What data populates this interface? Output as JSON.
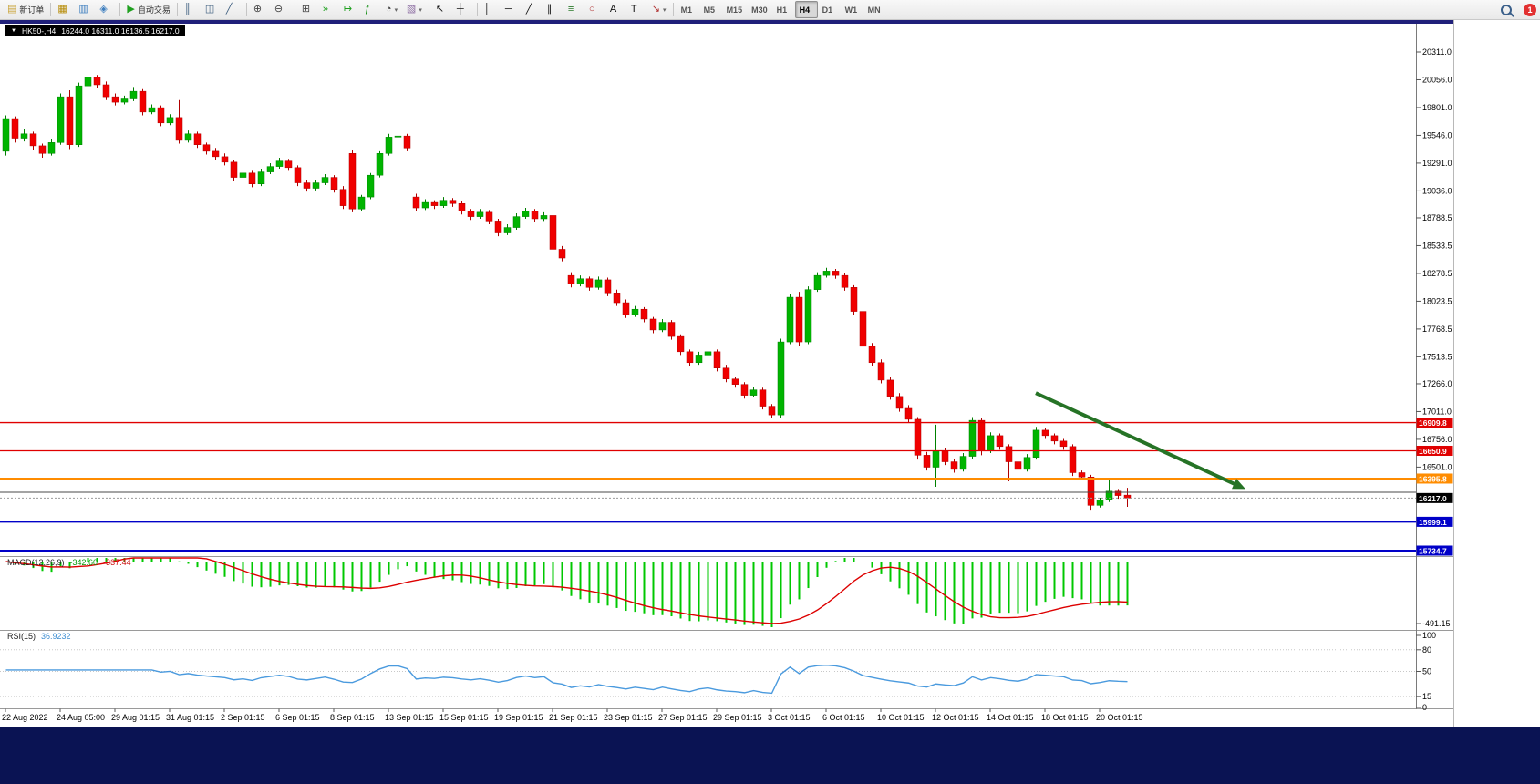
{
  "toolbar": {
    "notification_count": "1",
    "items": [
      {
        "type": "button",
        "name": "new-order-button",
        "glyph": "doc-plus",
        "label": "新订单"
      },
      {
        "type": "sep"
      },
      {
        "type": "button",
        "name": "charts-button",
        "glyph": "profiles"
      },
      {
        "type": "button",
        "name": "data-window-button",
        "glyph": "data-window"
      },
      {
        "type": "button",
        "name": "navigator-button",
        "glyph": "navigator"
      },
      {
        "type": "sep"
      },
      {
        "type": "button",
        "name": "autotrade-button",
        "glyph": "play",
        "label": "自动交易"
      },
      {
        "type": "sep"
      },
      {
        "type": "button",
        "name": "bar-chart-button",
        "glyph": "bars"
      },
      {
        "type": "button",
        "name": "candle-chart-button",
        "glyph": "candles"
      },
      {
        "type": "button",
        "name": "line-chart-button",
        "glyph": "linechart"
      },
      {
        "type": "sep"
      },
      {
        "type": "button",
        "name": "zoom-in-button",
        "glyph": "zoom-in"
      },
      {
        "type": "button",
        "name": "zoom-out-button",
        "glyph": "zoom-out"
      },
      {
        "type": "sep"
      },
      {
        "type": "button",
        "name": "tile-windows-button",
        "glyph": "grid"
      },
      {
        "type": "button",
        "name": "auto-scroll-button",
        "glyph": "autoscroll"
      },
      {
        "type": "button",
        "name": "chart-shift-button",
        "glyph": "shift"
      },
      {
        "type": "button",
        "name": "indicators-button",
        "glyph": "fx"
      },
      {
        "type": "button",
        "name": "periods-button",
        "glyph": "clock",
        "caret": true
      },
      {
        "type": "button",
        "name": "templates-button",
        "glyph": "template",
        "caret": true
      },
      {
        "type": "sep"
      },
      {
        "type": "button",
        "name": "cursor-button",
        "glyph": "cursor"
      },
      {
        "type": "button",
        "name": "crosshair-button",
        "glyph": "crosshair"
      },
      {
        "type": "sep"
      },
      {
        "type": "button",
        "name": "vertical-line-button",
        "glyph": "vline"
      },
      {
        "type": "button",
        "name": "horizontal-line-button",
        "glyph": "hline"
      },
      {
        "type": "button",
        "name": "trendline-button",
        "glyph": "tline"
      },
      {
        "type": "button",
        "name": "channel-button",
        "glyph": "channel"
      },
      {
        "type": "button",
        "name": "fibonacci-button",
        "glyph": "fibo"
      },
      {
        "type": "button",
        "name": "shapes-button",
        "glyph": "shapes"
      },
      {
        "type": "button",
        "name": "text-button",
        "glyph": "textA"
      },
      {
        "type": "button",
        "name": "label-button",
        "glyph": "textT"
      },
      {
        "type": "button",
        "name": "arrows-button",
        "glyph": "arrows",
        "caret": true
      },
      {
        "type": "sep"
      },
      {
        "type": "tf",
        "name": "timeframe-m1",
        "label": "M1"
      },
      {
        "type": "tf",
        "name": "timeframe-m5",
        "label": "M5"
      },
      {
        "type": "tf",
        "name": "timeframe-m15",
        "label": "M15"
      },
      {
        "type": "tf",
        "name": "timeframe-m30",
        "label": "M30"
      },
      {
        "type": "tf",
        "name": "timeframe-h1",
        "label": "H1"
      },
      {
        "type": "tf",
        "name": "timeframe-h4",
        "label": "H4",
        "active": true
      },
      {
        "type": "tf",
        "name": "timeframe-d1",
        "label": "D1"
      },
      {
        "type": "tf",
        "name": "timeframe-w1",
        "label": "W1"
      },
      {
        "type": "tf",
        "name": "timeframe-mn",
        "label": "MN"
      },
      {
        "type": "spacer"
      },
      {
        "type": "button",
        "name": "search-button",
        "glyph": "magnifier"
      },
      {
        "type": "badge",
        "name": "notification-badge",
        "label": "1"
      }
    ]
  },
  "chart_title": {
    "symbol": "HK50-,H4",
    "ohlc": "16244.0 16311.0 16136.5 16217.0"
  },
  "panels": {
    "macd_label": "MACD(12,26,9)",
    "macd_value": "-342.60",
    "macd_signal": "-337.44",
    "rsi_label": "RSI(15)",
    "rsi_value": "36.9232"
  },
  "chart_data": {
    "type": "candlestick",
    "symbol": "HK50-",
    "timeframe": "H4",
    "current": {
      "open": 16244.0,
      "high": 16311.0,
      "low": 16136.5,
      "close": 16217.0
    },
    "up_color": "#00b400",
    "down_color": "#f00000",
    "up_wick": "#008000",
    "down_wick": "#b00000",
    "price_axis_ticks": [
      20311.0,
      20056.0,
      19801.0,
      19546.0,
      19291.0,
      19036.0,
      18788.5,
      18533.5,
      18278.5,
      18023.5,
      17768.5,
      17513.5,
      17266.0,
      17011.0,
      16756.0,
      16501.0
    ],
    "price_tags": [
      {
        "price": 16909.8,
        "label": "16909.8",
        "color": "#e00000"
      },
      {
        "price": 16650.9,
        "label": "16650.9",
        "color": "#e00000"
      },
      {
        "price": 16395.8,
        "label": "16395.8",
        "color": "#ff8c00"
      },
      {
        "price": 16217.0,
        "label": "16217.0",
        "color": "#000000"
      },
      {
        "price": 15999.1,
        "label": "15999.1",
        "color": "#0000c8"
      },
      {
        "price": 15734.7,
        "label": "15734.7",
        "color": "#0000c8"
      }
    ],
    "hlines": [
      {
        "price": 16909.8,
        "color": "#e00000",
        "width": 1.3,
        "style": "solid"
      },
      {
        "price": 16650.9,
        "color": "#e00000",
        "width": 1.3,
        "style": "solid"
      },
      {
        "price": 16395.8,
        "color": "#ff8c00",
        "width": 2,
        "style": "solid"
      },
      {
        "price": 16270.0,
        "color": "#4a4a4a",
        "width": 1,
        "style": "solid"
      },
      {
        "price": 16217.0,
        "color": "#999999",
        "width": 1,
        "style": "dotted"
      },
      {
        "price": 15999.1,
        "color": "#0000c8",
        "width": 2,
        "style": "solid"
      },
      {
        "price": 15734.7,
        "color": "#0000c8",
        "width": 2,
        "style": "solid"
      }
    ],
    "trend_arrow": {
      "from_index": 113,
      "from_price": 17180,
      "to_index": 136,
      "to_price": 16300,
      "color": "#267326"
    },
    "macd": {
      "fast": 12,
      "slow": 26,
      "signal_period": 9,
      "axis_label": "-491.15",
      "bar_color": "#00c800",
      "signal_color": "#dd0000"
    },
    "rsi": {
      "period": 15,
      "levels": [
        80,
        50,
        15
      ],
      "axis_labels": [
        "100",
        "80",
        "50",
        "15",
        "0"
      ],
      "line_color": "#4a9ade"
    },
    "time_axis": [
      {
        "i": 0,
        "label": "22 Aug 2022"
      },
      {
        "i": 6,
        "label": "24 Aug 05:00"
      },
      {
        "i": 12,
        "label": "29 Aug 01:15"
      },
      {
        "i": 18,
        "label": "31 Aug 01:15"
      },
      {
        "i": 24,
        "label": "2 Sep 01:15"
      },
      {
        "i": 30,
        "label": "6 Sep 01:15"
      },
      {
        "i": 36,
        "label": "8 Sep 01:15"
      },
      {
        "i": 42,
        "label": "13 Sep 01:15"
      },
      {
        "i": 48,
        "label": "15 Sep 01:15"
      },
      {
        "i": 54,
        "label": "19 Sep 01:15"
      },
      {
        "i": 60,
        "label": "21 Sep 01:15"
      },
      {
        "i": 66,
        "label": "23 Sep 01:15"
      },
      {
        "i": 72,
        "label": "27 Sep 01:15"
      },
      {
        "i": 78,
        "label": "29 Sep 01:15"
      },
      {
        "i": 84,
        "label": "3 Oct 01:15"
      },
      {
        "i": 90,
        "label": "6 Oct 01:15"
      },
      {
        "i": 96,
        "label": "10 Oct 01:15"
      },
      {
        "i": 102,
        "label": "12 Oct 01:15"
      },
      {
        "i": 108,
        "label": "14 Oct 01:15"
      },
      {
        "i": 114,
        "label": "18 Oct 01:15"
      },
      {
        "i": 120,
        "label": "20 Oct 01:15"
      }
    ],
    "candles": [
      [
        19400,
        19730,
        19360,
        19700
      ],
      [
        19700,
        19720,
        19480,
        19520
      ],
      [
        19520,
        19600,
        19490,
        19560
      ],
      [
        19560,
        19580,
        19410,
        19450
      ],
      [
        19450,
        19470,
        19340,
        19380
      ],
      [
        19380,
        19510,
        19360,
        19480
      ],
      [
        19480,
        19930,
        19460,
        19900
      ],
      [
        19900,
        19960,
        19420,
        19460
      ],
      [
        19460,
        20030,
        19440,
        20000
      ],
      [
        20000,
        20120,
        19970,
        20080
      ],
      [
        20080,
        20100,
        19980,
        20010
      ],
      [
        20010,
        20040,
        19870,
        19900
      ],
      [
        19900,
        19930,
        19820,
        19850
      ],
      [
        19850,
        19910,
        19830,
        19880
      ],
      [
        19880,
        19990,
        19860,
        19950
      ],
      [
        19950,
        19970,
        19730,
        19760
      ],
      [
        19760,
        19830,
        19740,
        19800
      ],
      [
        19800,
        19820,
        19630,
        19660
      ],
      [
        19660,
        19740,
        19640,
        19710
      ],
      [
        19710,
        19870,
        19470,
        19500
      ],
      [
        19500,
        19590,
        19480,
        19560
      ],
      [
        19560,
        19580,
        19430,
        19460
      ],
      [
        19460,
        19480,
        19370,
        19400
      ],
      [
        19400,
        19430,
        19320,
        19350
      ],
      [
        19350,
        19380,
        19270,
        19300
      ],
      [
        19300,
        19320,
        19130,
        19160
      ],
      [
        19160,
        19230,
        19140,
        19200
      ],
      [
        19200,
        19220,
        19070,
        19100
      ],
      [
        19100,
        19240,
        19080,
        19210
      ],
      [
        19210,
        19290,
        19190,
        19260
      ],
      [
        19260,
        19340,
        19240,
        19310
      ],
      [
        19310,
        19330,
        19220,
        19250
      ],
      [
        19250,
        19270,
        19080,
        19110
      ],
      [
        19110,
        19140,
        19030,
        19060
      ],
      [
        19060,
        19140,
        19040,
        19110
      ],
      [
        19110,
        19190,
        19090,
        19160
      ],
      [
        19160,
        19180,
        19020,
        19050
      ],
      [
        19050,
        19080,
        18870,
        18900
      ],
      [
        19380,
        19410,
        18840,
        18870
      ],
      [
        18870,
        19000,
        18850,
        18980
      ],
      [
        18980,
        19200,
        18960,
        19180
      ],
      [
        19180,
        19400,
        19160,
        19380
      ],
      [
        19380,
        19560,
        19360,
        19530
      ],
      [
        19530,
        19580,
        19490,
        19540
      ],
      [
        19540,
        19560,
        19400,
        19430
      ],
      [
        18980,
        19010,
        18850,
        18880
      ],
      [
        18880,
        18960,
        18860,
        18930
      ],
      [
        18930,
        18950,
        18870,
        18900
      ],
      [
        18900,
        18980,
        18880,
        18950
      ],
      [
        18950,
        18970,
        18890,
        18920
      ],
      [
        18920,
        18940,
        18820,
        18850
      ],
      [
        18850,
        18870,
        18770,
        18800
      ],
      [
        18800,
        18870,
        18780,
        18840
      ],
      [
        18840,
        18860,
        18730,
        18760
      ],
      [
        18760,
        18780,
        18620,
        18650
      ],
      [
        18650,
        18730,
        18630,
        18700
      ],
      [
        18700,
        18830,
        18680,
        18800
      ],
      [
        18800,
        18880,
        18780,
        18850
      ],
      [
        18850,
        18870,
        18750,
        18780
      ],
      [
        18780,
        18840,
        18760,
        18810
      ],
      [
        18810,
        18830,
        18470,
        18500
      ],
      [
        18500,
        18530,
        18390,
        18420
      ],
      [
        18260,
        18290,
        18150,
        18180
      ],
      [
        18180,
        18260,
        18160,
        18230
      ],
      [
        18230,
        18250,
        18120,
        18150
      ],
      [
        18150,
        18250,
        18130,
        18220
      ],
      [
        18220,
        18240,
        18070,
        18100
      ],
      [
        18100,
        18130,
        17980,
        18010
      ],
      [
        18010,
        18040,
        17870,
        17900
      ],
      [
        17900,
        17980,
        17880,
        17950
      ],
      [
        17950,
        17970,
        17830,
        17860
      ],
      [
        17860,
        17880,
        17730,
        17760
      ],
      [
        17760,
        17860,
        17740,
        17830
      ],
      [
        17830,
        17850,
        17670,
        17700
      ],
      [
        17700,
        17720,
        17530,
        17560
      ],
      [
        17560,
        17580,
        17430,
        17460
      ],
      [
        17460,
        17560,
        17440,
        17530
      ],
      [
        17530,
        17600,
        17510,
        17560
      ],
      [
        17560,
        17580,
        17380,
        17410
      ],
      [
        17410,
        17440,
        17280,
        17310
      ],
      [
        17310,
        17330,
        17230,
        17260
      ],
      [
        17260,
        17280,
        17130,
        17160
      ],
      [
        17160,
        17240,
        17140,
        17210
      ],
      [
        17210,
        17230,
        17030,
        17060
      ],
      [
        17060,
        17080,
        16950,
        16980
      ],
      [
        16980,
        17680,
        16950,
        17650
      ],
      [
        17650,
        18090,
        17630,
        18060
      ],
      [
        18060,
        18110,
        17610,
        17650
      ],
      [
        17650,
        18160,
        17630,
        18130
      ],
      [
        18130,
        18290,
        18110,
        18260
      ],
      [
        18260,
        18330,
        18240,
        18300
      ],
      [
        18300,
        18320,
        18230,
        18260
      ],
      [
        18260,
        18280,
        18120,
        18150
      ],
      [
        18150,
        18170,
        17900,
        17930
      ],
      [
        17930,
        17950,
        17580,
        17610
      ],
      [
        17610,
        17640,
        17430,
        17460
      ],
      [
        17460,
        17490,
        17270,
        17300
      ],
      [
        17300,
        17330,
        17120,
        17150
      ],
      [
        17150,
        17180,
        17010,
        17040
      ],
      [
        17040,
        17070,
        16910,
        16940
      ],
      [
        16940,
        16960,
        16570,
        16610
      ],
      [
        16610,
        16640,
        16470,
        16500
      ],
      [
        16500,
        16890,
        16320,
        16650
      ],
      [
        16650,
        16680,
        16520,
        16550
      ],
      [
        16550,
        16580,
        16450,
        16480
      ],
      [
        16480,
        16630,
        16460,
        16600
      ],
      [
        16600,
        16960,
        16580,
        16930
      ],
      [
        16930,
        16950,
        16610,
        16650
      ],
      [
        16650,
        16820,
        16630,
        16790
      ],
      [
        16790,
        16810,
        16660,
        16690
      ],
      [
        16690,
        16710,
        16370,
        16550
      ],
      [
        16550,
        16570,
        16450,
        16480
      ],
      [
        16480,
        16620,
        16460,
        16590
      ],
      [
        16590,
        16870,
        16570,
        16840
      ],
      [
        16840,
        16860,
        16760,
        16790
      ],
      [
        16790,
        16810,
        16710,
        16740
      ],
      [
        16740,
        16760,
        16660,
        16690
      ],
      [
        16690,
        16710,
        16420,
        16450
      ],
      [
        16450,
        16470,
        16380,
        16410
      ],
      [
        16410,
        16430,
        16110,
        16150
      ],
      [
        16150,
        16220,
        16130,
        16200
      ],
      [
        16200,
        16380,
        16180,
        16280
      ],
      [
        16280,
        16300,
        16210,
        16240
      ],
      [
        16244,
        16311,
        16136.5,
        16217
      ]
    ]
  }
}
